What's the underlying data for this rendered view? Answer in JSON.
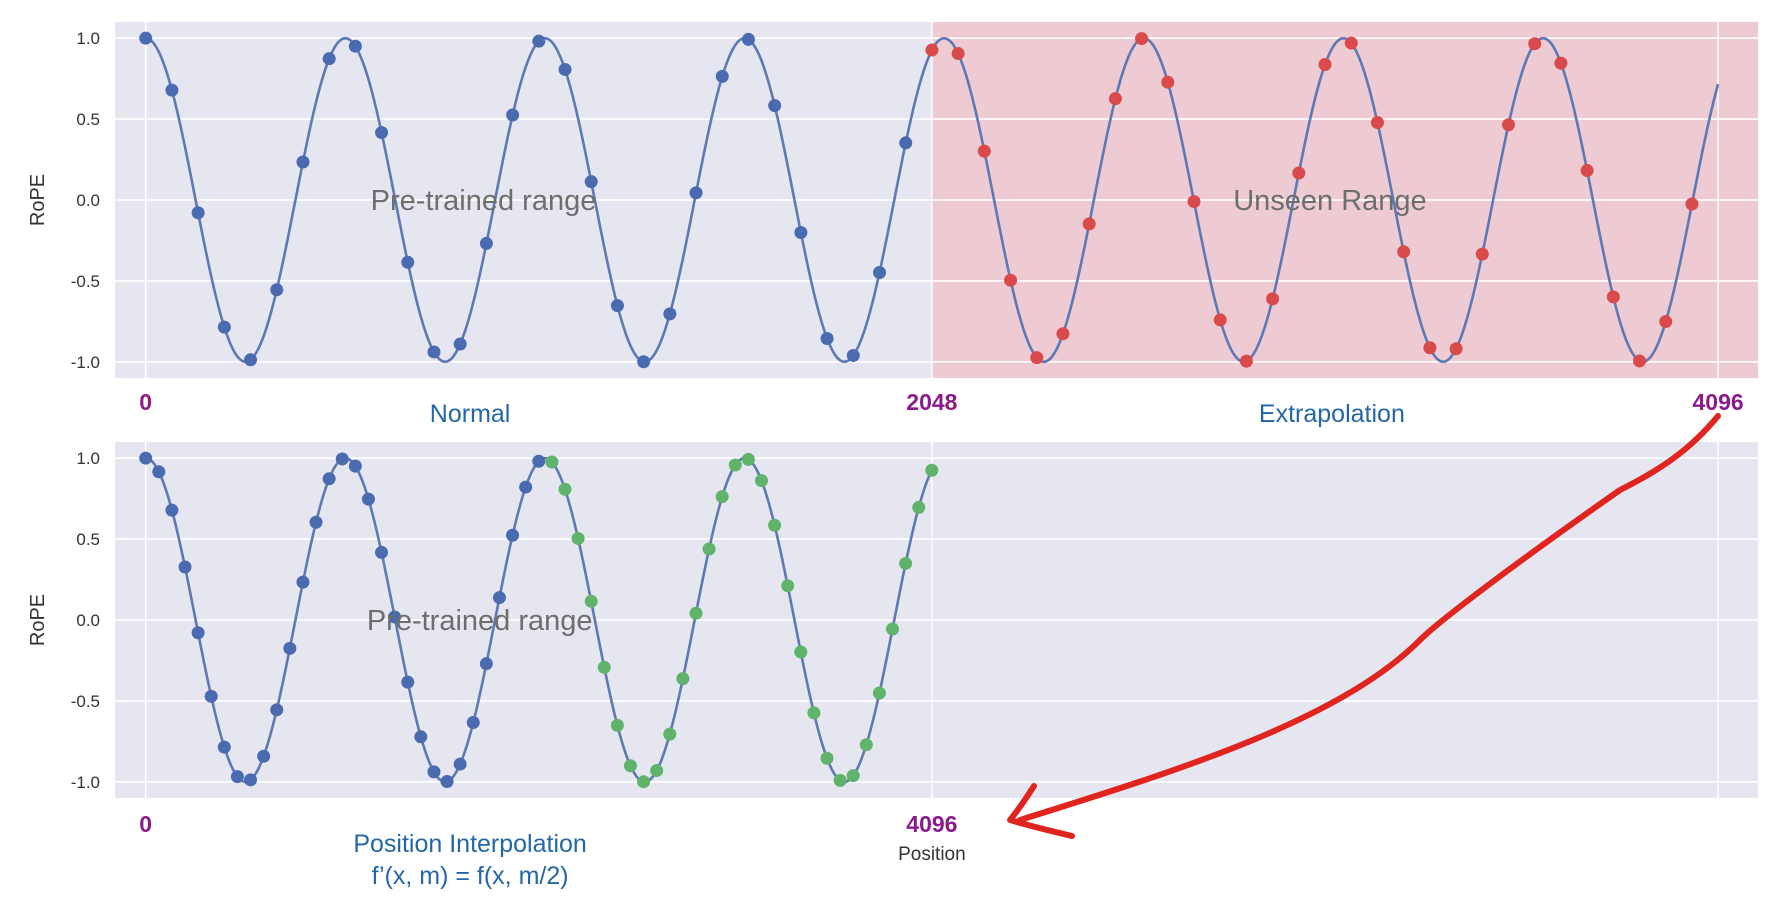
{
  "colors": {
    "plot_bg": "#e6e6f1",
    "grid": "#ffffff",
    "curve": "#5d79b3",
    "point_normal": "#4a6bb0",
    "point_extrapolated": "#d94a4a",
    "point_interpolated": "#5fb36a",
    "unseen_region": "#efc6cc",
    "position_label": "#8a1b8a",
    "caption": "#2467a8",
    "arrow": "#e0241e"
  },
  "chart_data": [
    {
      "type": "line",
      "ylabel": "RoPE",
      "ylim": [
        -1.1,
        1.1
      ],
      "yticks": [
        "1.0",
        "0.5",
        "0.0",
        "-0.5",
        "-1.0"
      ],
      "ytick_values": [
        1.0,
        0.5,
        0.0,
        -0.5,
        -1.0
      ],
      "xlim": [
        -80,
        4200
      ],
      "curve": {
        "function": "cos",
        "period": 520,
        "x_range": [
          0,
          4096
        ]
      },
      "point_spacing": 68.27,
      "series": [
        {
          "x_range": [
            0,
            2048
          ],
          "style": "normal"
        },
        {
          "x_range": [
            2048,
            4096
          ],
          "style": "extrapolated"
        }
      ],
      "shaded_region": {
        "x_range": [
          2048,
          4200
        ]
      },
      "range_labels": [
        {
          "text": "Pre-trained range",
          "x": 880,
          "y": 0.0
        },
        {
          "text": "Unseen Range",
          "x": 3085,
          "y": 0.0
        }
      ],
      "position_labels": [
        {
          "text": "0",
          "x": 0
        },
        {
          "text": "2048",
          "x": 2048
        },
        {
          "text": "4096",
          "x": 4096
        }
      ],
      "captions": [
        {
          "text": "Normal",
          "x": 845
        },
        {
          "text": "Extrapolation",
          "x": 3090
        }
      ]
    },
    {
      "type": "line",
      "ylabel": "RoPE",
      "xlabel": "Position",
      "ylim": [
        -1.1,
        1.1
      ],
      "yticks": [
        "1.0",
        "0.5",
        "0.0",
        "-0.5",
        "-1.0"
      ],
      "ytick_values": [
        1.0,
        0.5,
        0.0,
        -0.5,
        -1.0
      ],
      "xlim": [
        -80,
        4200
      ],
      "curve": {
        "function": "cos",
        "period": 520,
        "x_range": [
          0,
          2048
        ]
      },
      "point_spacing": 34.13,
      "series": [
        {
          "x_range": [
            0,
            1024
          ],
          "style": "normal"
        },
        {
          "x_range": [
            1024,
            2048
          ],
          "style": "interpolated"
        }
      ],
      "vertical_gridlines": [
        2048,
        4096
      ],
      "range_labels": [
        {
          "text": "Pre-trained range",
          "x": 870,
          "y": 0.0
        }
      ],
      "position_labels": [
        {
          "text": "0",
          "x": 0
        },
        {
          "text": "4096",
          "x": 2048
        }
      ],
      "captions": [
        {
          "text": "Position Interpolation",
          "x": 845
        },
        {
          "text": "f’(x, m) = f(x, m/2)",
          "x": 845
        }
      ]
    }
  ]
}
